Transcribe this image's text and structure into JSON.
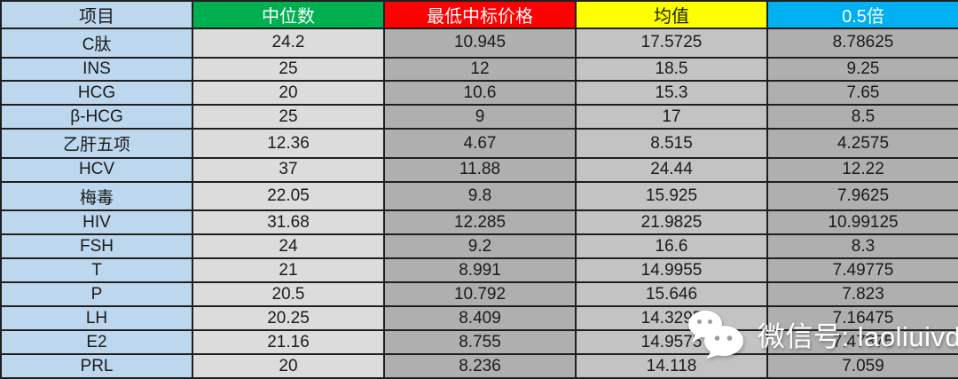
{
  "table": {
    "headers": [
      {
        "label": "项目",
        "bg": "#BDD7EE",
        "fg": "#1b1b1b"
      },
      {
        "label": "中位数",
        "bg": "#00B050",
        "fg": "#ffffff"
      },
      {
        "label": "最低中标价格",
        "bg": "#FF0000",
        "fg": "#ffffff"
      },
      {
        "label": "均值",
        "bg": "#FFFF00",
        "fg": "#1b1b1b"
      },
      {
        "label": "0.5倍",
        "bg": "#00B0F0",
        "fg": "#ffffff"
      }
    ],
    "column_bg": [
      "#BDD7EE",
      "#DCDCDC",
      "#AFAFAF",
      "#C3C3C3",
      "#AFAFAF"
    ],
    "border_color": "#1f1f1f"
  },
  "chart_data": {
    "type": "table",
    "columns": [
      "项目",
      "中位数",
      "最低中标价格",
      "均值",
      "0.5倍"
    ],
    "rows": [
      [
        "C肽",
        24.2,
        10.945,
        17.5725,
        8.78625
      ],
      [
        "INS",
        25,
        12,
        18.5,
        9.25
      ],
      [
        "HCG",
        20,
        10.6,
        15.3,
        7.65
      ],
      [
        "β-HCG",
        25,
        9,
        17,
        8.5
      ],
      [
        "乙肝五项",
        12.36,
        4.67,
        8.515,
        4.2575
      ],
      [
        "HCV",
        37,
        11.88,
        24.44,
        12.22
      ],
      [
        "梅毒",
        22.05,
        9.8,
        15.925,
        7.9625
      ],
      [
        "HIV",
        31.68,
        12.285,
        21.9825,
        10.99125
      ],
      [
        "FSH",
        24,
        9.2,
        16.6,
        8.3
      ],
      [
        "T",
        21,
        8.991,
        14.9955,
        7.49775
      ],
      [
        "P",
        20.5,
        10.792,
        15.646,
        7.823
      ],
      [
        "LH",
        20.25,
        8.409,
        14.3295,
        7.16475
      ],
      [
        "E2",
        21.16,
        8.755,
        14.9575,
        7.47875
      ],
      [
        "PRL",
        20,
        8.236,
        14.118,
        7.059
      ]
    ]
  },
  "watermark": {
    "text": "微信号: laoliuivd",
    "icon": "wechat-icon",
    "color": "#ffffff"
  }
}
